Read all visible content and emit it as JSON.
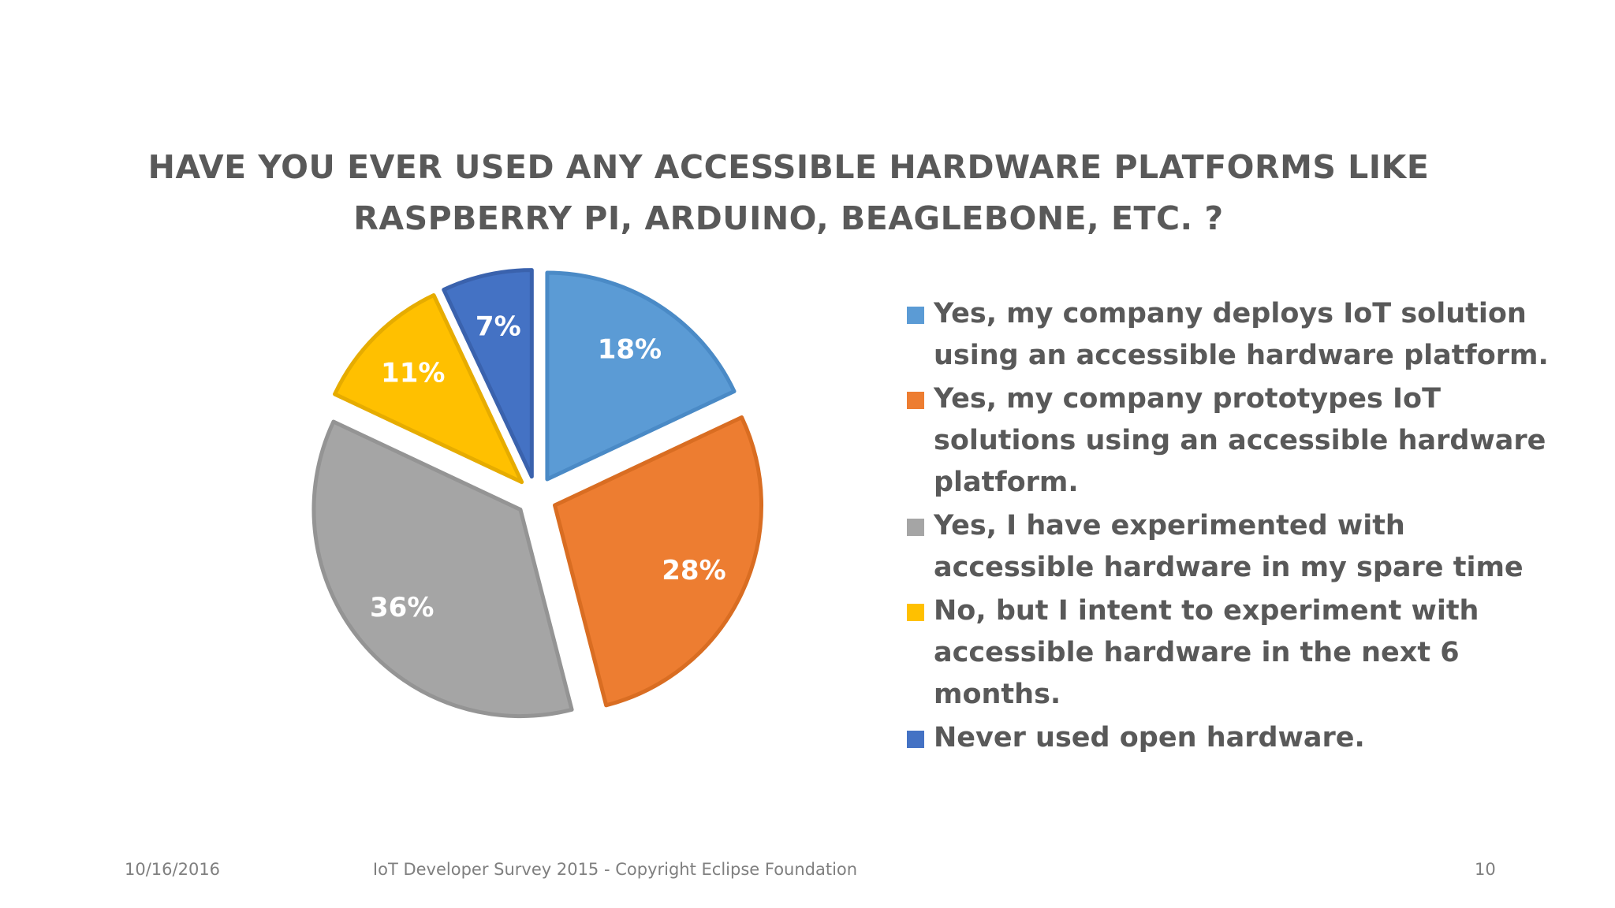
{
  "title": {
    "line1": "HAVE YOU EVER USED ANY ACCESSIBLE HARDWARE PLATFORMS LIKE",
    "line2": "RASPBERRY PI, ARDUINO, BEAGLEBONE, ETC. ?"
  },
  "chart_data": {
    "type": "pie",
    "title": "HAVE YOU EVER USED ANY ACCESSIBLE HARDWARE PLATFORMS LIKE RASPBERRY PI, ARDUINO, BEAGLEBONE, ETC. ?",
    "categories": [
      "Yes, my company deploys IoT solution using an accessible hardware platform.",
      "Yes, my company prototypes IoT solutions using an accessible hardware platform.",
      "Yes, I have experimented with accessible hardware in my spare time",
      "No, but I intent to experiment with accessible hardware in the next 6 months.",
      "Never used open hardware."
    ],
    "values": [
      18,
      28,
      36,
      11,
      7
    ],
    "value_labels": [
      "18%",
      "28%",
      "36%",
      "11%",
      "7%"
    ],
    "colors": [
      "#5B9BD5",
      "#ED7D31",
      "#A5A5A5",
      "#FFC000",
      "#4472C4"
    ],
    "exploded": true,
    "legend_position": "right"
  },
  "footer": {
    "date": "10/16/2016",
    "center": "IoT Developer Survey 2015 - Copyright Eclipse Foundation",
    "page": "10"
  }
}
